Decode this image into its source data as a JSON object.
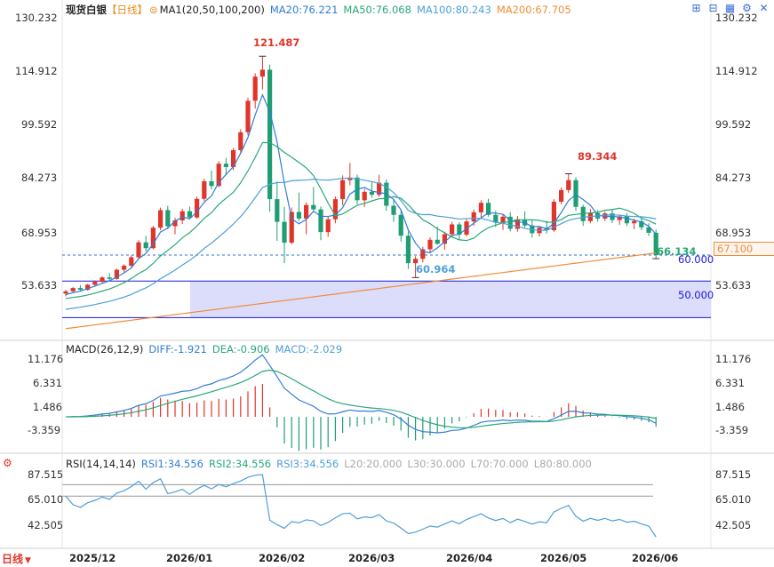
{
  "header": {
    "symbol": "现货白银",
    "period_tag": "【日线】",
    "ma_label": "MA1(20,50,100,200)",
    "ma20": "MA20:76.221",
    "ma50": "MA50:76.068",
    "ma100": "MA100:80.243",
    "ma200": "MA200:67.705"
  },
  "toolbar": [
    "expand-icon",
    "collapse-icon",
    "grid-icon",
    "settings-icon",
    "close-icon"
  ],
  "colors": {
    "up": "#e0352b",
    "down": "#1f9e74",
    "ma20": "#2f7ed8",
    "ma50": "#2aa876",
    "ma100": "#4e9fd8",
    "ma200": "#f08c3a",
    "band": "#dcdcfb",
    "bandline": "#1a1adb"
  },
  "price_axis": {
    "labels": [
      "130.232",
      "114.912",
      "99.592",
      "84.273",
      "68.953",
      "53.633"
    ],
    "last_price": "67.100",
    "high_label": "121.487",
    "low_label": "60.964",
    "recent_high_label": "89.344",
    "recent_low_label": "66.134",
    "band_top": "60.000",
    "band_bottom": "50.000"
  },
  "macd": {
    "label": "MACD(26,12,9)",
    "diff": "DIFF:-1.921",
    "dea": "DEA:-0.906",
    "macd": "MACD:-2.029",
    "axis": [
      "11.176",
      "6.331",
      "1.486",
      "-3.359"
    ]
  },
  "rsi": {
    "label": "RSI(14,14,14)",
    "rsi1": "RSI1:34.556",
    "rsi2": "RSI2:34.556",
    "rsi3": "RSI3:34.556",
    "l20": "L20:20.000",
    "l30": "L30:30.000",
    "l70": "L70:70.000",
    "l80": "L80:80.000",
    "axis": [
      "87.515",
      "65.010",
      "42.505"
    ]
  },
  "x_axis": [
    "2025/12",
    "2026/01",
    "2026/02",
    "2026/03",
    "2026/04",
    "2026/05",
    "2026/06"
  ],
  "period_button": "日线",
  "chart_data": {
    "type": "candlestick",
    "title": "现货白银【日线】",
    "ylim": [
      45,
      132
    ],
    "ohlc_anchors": [
      [
        56.6,
        57.6,
        55.8,
        57.2
      ],
      [
        57.2,
        58.4,
        56.9,
        58.1
      ],
      [
        58.1,
        58.9,
        57.3,
        57.6
      ],
      [
        57.6,
        59.2,
        57.4,
        59.0
      ],
      [
        59.0,
        60.2,
        58.6,
        59.8
      ],
      [
        59.8,
        61.3,
        59.4,
        61.0
      ],
      [
        61.0,
        62.2,
        60.1,
        60.6
      ],
      [
        60.6,
        63.4,
        60.4,
        63.1
      ],
      [
        63.1,
        64.6,
        62.4,
        64.2
      ],
      [
        64.2,
        67.0,
        63.8,
        66.5
      ],
      [
        66.5,
        71.2,
        66.0,
        70.6
      ],
      [
        70.6,
        72.4,
        68.1,
        69.0
      ],
      [
        69.0,
        75.1,
        68.7,
        74.6
      ],
      [
        74.6,
        80.1,
        73.9,
        79.4
      ],
      [
        79.4,
        80.6,
        74.2,
        75.0
      ],
      [
        75.0,
        77.3,
        72.8,
        76.6
      ],
      [
        76.6,
        79.8,
        75.6,
        79.1
      ],
      [
        79.1,
        80.4,
        76.9,
        77.4
      ],
      [
        77.4,
        83.1,
        77.0,
        82.5
      ],
      [
        82.5,
        88.0,
        81.9,
        87.3
      ],
      [
        87.3,
        90.2,
        85.1,
        86.0
      ],
      [
        86.0,
        92.8,
        85.7,
        92.1
      ],
      [
        92.1,
        93.7,
        88.9,
        91.2
      ],
      [
        91.2,
        96.4,
        90.3,
        95.8
      ],
      [
        95.8,
        101.5,
        94.9,
        100.7
      ],
      [
        100.7,
        110.1,
        99.8,
        109.3
      ],
      [
        109.3,
        116.8,
        107.2,
        115.9
      ],
      [
        115.9,
        121.5,
        112.4,
        117.8
      ],
      [
        117.8,
        119.2,
        79.0,
        82.4
      ],
      [
        82.4,
        87.2,
        71.0,
        76.2
      ],
      [
        76.2,
        80.3,
        64.9,
        70.5
      ],
      [
        70.5,
        80.1,
        70.1,
        78.9
      ],
      [
        78.9,
        84.2,
        76.4,
        77.1
      ],
      [
        77.1,
        81.5,
        72.8,
        80.8
      ],
      [
        80.8,
        85.7,
        78.9,
        79.6
      ],
      [
        79.6,
        80.4,
        71.2,
        73.4
      ],
      [
        73.4,
        77.6,
        72.1,
        76.9
      ],
      [
        76.9,
        83.1,
        75.8,
        82.4
      ],
      [
        82.4,
        88.9,
        80.7,
        87.6
      ],
      [
        87.6,
        92.3,
        86.2,
        88.3
      ],
      [
        88.3,
        89.1,
        81.0,
        82.1
      ],
      [
        82.1,
        85.2,
        80.3,
        84.4
      ],
      [
        84.4,
        87.0,
        82.8,
        83.6
      ],
      [
        83.6,
        89.1,
        83.0,
        86.9
      ],
      [
        86.9,
        87.8,
        79.2,
        80.6
      ],
      [
        80.6,
        82.5,
        76.2,
        78.1
      ],
      [
        78.1,
        79.3,
        70.8,
        72.4
      ],
      [
        72.4,
        73.6,
        63.3,
        64.9
      ],
      [
        64.9,
        66.8,
        61.0,
        66.1
      ],
      [
        66.1,
        69.4,
        65.1,
        68.7
      ],
      [
        68.7,
        72.0,
        67.8,
        71.3
      ],
      [
        71.3,
        74.9,
        69.9,
        70.2
      ],
      [
        70.2,
        73.5,
        68.6,
        72.8
      ],
      [
        72.8,
        76.2,
        72.1,
        75.5
      ],
      [
        75.5,
        76.1,
        71.4,
        72.7
      ],
      [
        72.7,
        76.9,
        72.2,
        76.3
      ],
      [
        76.3,
        79.6,
        75.1,
        78.8
      ],
      [
        78.8,
        82.1,
        77.3,
        81.4
      ],
      [
        81.4,
        82.5,
        77.6,
        78.1
      ],
      [
        78.1,
        79.2,
        74.8,
        76.0
      ],
      [
        76.0,
        78.4,
        74.0,
        77.6
      ],
      [
        77.6,
        78.9,
        73.6,
        74.3
      ],
      [
        74.3,
        77.8,
        73.5,
        76.9
      ],
      [
        76.9,
        79.1,
        74.6,
        75.2
      ],
      [
        75.2,
        76.8,
        71.9,
        73.1
      ],
      [
        73.1,
        75.0,
        72.2,
        74.6
      ],
      [
        74.6,
        76.5,
        73.0,
        73.9
      ],
      [
        73.9,
        82.4,
        73.5,
        81.7
      ],
      [
        81.7,
        85.6,
        81.0,
        84.9
      ],
      [
        84.9,
        89.3,
        84.1,
        87.6
      ],
      [
        87.6,
        88.4,
        79.2,
        80.3
      ],
      [
        80.3,
        80.9,
        75.1,
        76.4
      ],
      [
        76.4,
        79.7,
        75.8,
        78.6
      ],
      [
        78.6,
        79.4,
        76.2,
        77.1
      ],
      [
        77.1,
        79.0,
        76.4,
        78.5
      ],
      [
        78.5,
        79.6,
        75.9,
        76.7
      ],
      [
        76.7,
        78.2,
        75.4,
        77.7
      ],
      [
        77.7,
        78.6,
        75.0,
        75.8
      ],
      [
        75.8,
        77.1,
        74.2,
        76.4
      ],
      [
        76.4,
        77.2,
        73.9,
        74.7
      ],
      [
        74.7,
        75.8,
        72.3,
        73.2
      ],
      [
        73.2,
        74.1,
        66.1,
        67.1
      ]
    ],
    "price_high": 121.487,
    "price_low": 60.964,
    "recent_high": 89.344,
    "recent_low": 66.134,
    "last_price": 67.1,
    "band": [
      50.0,
      60.0
    ],
    "ma_last": {
      "MA20": 76.221,
      "MA50": 76.068,
      "MA100": 80.243,
      "MA200": 67.705
    },
    "macd_last": {
      "DIFF": -1.921,
      "DEA": -0.906,
      "MACD": -2.029
    },
    "rsi_last": 34.556,
    "x_ticks": [
      "2025/12",
      "2026/01",
      "2026/02",
      "2026/03",
      "2026/04",
      "2026/05",
      "2026/06"
    ]
  }
}
